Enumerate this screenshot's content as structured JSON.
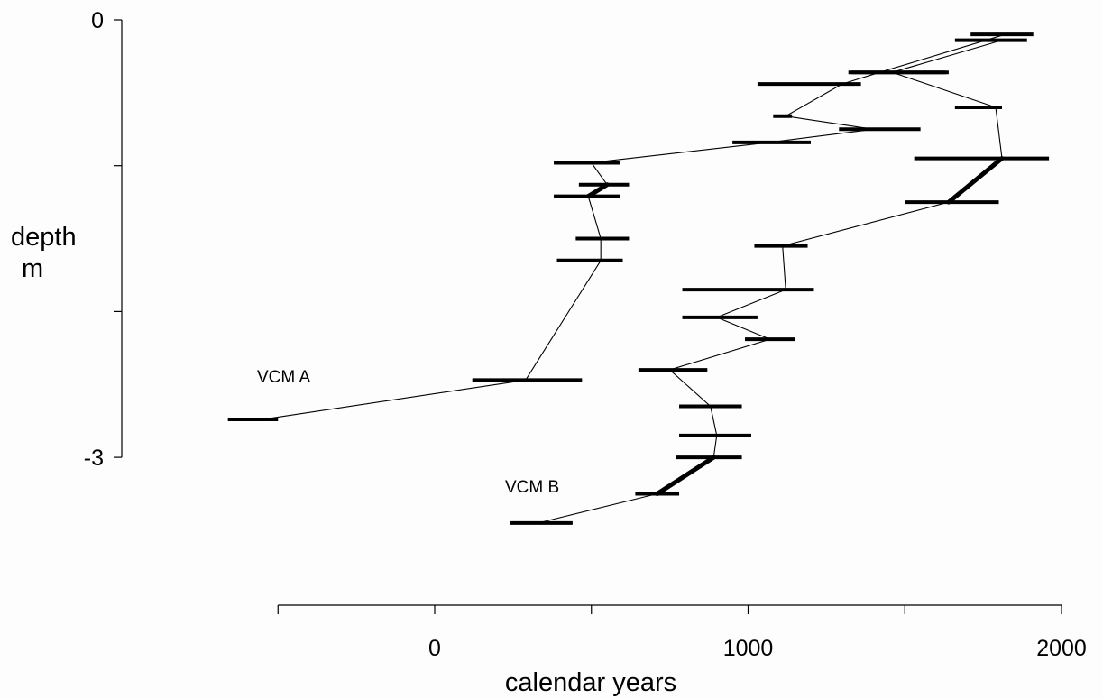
{
  "chart_data": {
    "type": "scatter",
    "xlabel": "calendar years",
    "ylabel_line1": "depth",
    "ylabel_line2": "m",
    "xlim": [
      -500,
      2000
    ],
    "ylim": [
      0,
      -3
    ],
    "xticks": [
      -500,
      0,
      500,
      1000,
      1500,
      2000
    ],
    "xtick_labels": [
      "0",
      "1000",
      "2000"
    ],
    "xtick_labels_at": [
      0,
      1000,
      2000
    ],
    "yticks": [
      0,
      -1,
      -2,
      -3
    ],
    "ytick_labels": [
      "0",
      "-3"
    ],
    "ytick_labels_at": [
      0,
      -3
    ],
    "grid": false,
    "series": [
      {
        "name": "VCM A",
        "color": "#000000",
        "points": [
          {
            "depth": -0.1,
            "year": 1820,
            "lo": 1710,
            "hi": 1910
          },
          {
            "depth": -0.36,
            "year": 1420,
            "lo": 1320,
            "hi": 1630
          },
          {
            "depth": -0.44,
            "year": 1300,
            "lo": 1030,
            "hi": 1360
          },
          {
            "depth": -0.66,
            "year": 1120,
            "lo": 1080,
            "hi": 1140
          },
          {
            "depth": -0.75,
            "year": 1400,
            "lo": 1290,
            "hi": 1550
          },
          {
            "depth": -0.84,
            "year": 1070,
            "lo": 950,
            "hi": 1200
          },
          {
            "depth": -0.98,
            "year": 500,
            "lo": 380,
            "hi": 590
          },
          {
            "depth": -1.13,
            "year": 550,
            "lo": 460,
            "hi": 620
          },
          {
            "depth": -1.21,
            "year": 490,
            "lo": 380,
            "hi": 590
          },
          {
            "depth": -1.5,
            "year": 530,
            "lo": 450,
            "hi": 620
          },
          {
            "depth": -1.65,
            "year": 530,
            "lo": 390,
            "hi": 600
          },
          {
            "depth": -2.47,
            "year": 290,
            "lo": 120,
            "hi": 470
          },
          {
            "depth": -2.74,
            "year": -550,
            "lo": -660,
            "hi": -500
          }
        ],
        "bold_links": [
          [
            7,
            8
          ]
        ]
      },
      {
        "name": "VCM B",
        "color": "#000000",
        "points": [
          {
            "depth": -0.14,
            "year": 1810,
            "lo": 1660,
            "hi": 1890
          },
          {
            "depth": -0.36,
            "year": 1460,
            "lo": 1330,
            "hi": 1640
          },
          {
            "depth": -0.6,
            "year": 1790,
            "lo": 1660,
            "hi": 1810
          },
          {
            "depth": -0.95,
            "year": 1810,
            "lo": 1530,
            "hi": 1960
          },
          {
            "depth": -1.25,
            "year": 1640,
            "lo": 1500,
            "hi": 1800
          },
          {
            "depth": -1.55,
            "year": 1110,
            "lo": 1020,
            "hi": 1190
          },
          {
            "depth": -1.85,
            "year": 1120,
            "lo": 790,
            "hi": 1210
          },
          {
            "depth": -2.04,
            "year": 900,
            "lo": 790,
            "hi": 1030
          },
          {
            "depth": -2.19,
            "year": 1070,
            "lo": 990,
            "hi": 1150
          },
          {
            "depth": -2.4,
            "year": 750,
            "lo": 650,
            "hi": 870
          },
          {
            "depth": -2.65,
            "year": 880,
            "lo": 780,
            "hi": 980
          },
          {
            "depth": -2.85,
            "year": 900,
            "lo": 780,
            "hi": 1010
          },
          {
            "depth": -3.0,
            "year": 890,
            "lo": 770,
            "hi": 980
          },
          {
            "depth": -3.25,
            "year": 710,
            "lo": 640,
            "hi": 780
          },
          {
            "depth": -3.45,
            "year": 330,
            "lo": 240,
            "hi": 440
          }
        ],
        "bold_links": [
          [
            3,
            4
          ],
          [
            12,
            13
          ]
        ]
      }
    ]
  }
}
